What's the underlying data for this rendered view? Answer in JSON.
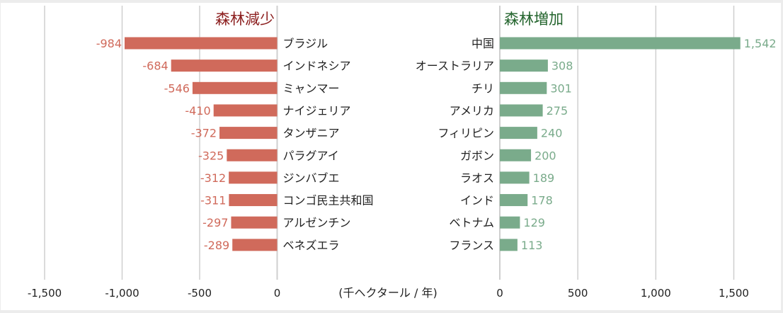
{
  "chart_data": [
    {
      "type": "bar",
      "orientation": "horizontal",
      "title": "森林減少",
      "title_color": "#8b1d1d",
      "bar_color": "#d06a5b",
      "categories": [
        "ブラジル",
        "インドネシア",
        "ミャンマー",
        "ナイジェリア",
        "タンザニア",
        "パラグアイ",
        "ジンバブエ",
        "コンゴ民主共和国",
        "アルゼンチン",
        "ベネズエラ"
      ],
      "values": [
        -984,
        -684,
        -546,
        -410,
        -372,
        -325,
        -312,
        -311,
        -297,
        -289
      ],
      "value_labels": [
        "-984",
        "-684",
        "-546",
        "-410",
        "-372",
        "-325",
        "-312",
        "-311",
        "-297",
        "-289"
      ],
      "xlim": [
        -1500,
        0
      ],
      "xticks": [
        -1500,
        -1000,
        -500,
        0
      ],
      "xtick_labels": [
        "-1,500",
        "-1,000",
        "-500",
        "0"
      ],
      "grid": true
    },
    {
      "type": "bar",
      "orientation": "horizontal",
      "title": "森林増加",
      "title_color": "#24652e",
      "bar_color": "#7aab8b",
      "categories": [
        "中国",
        "オーストラリア",
        "チリ",
        "アメリカ",
        "フィリピン",
        "ガボン",
        "ラオス",
        "インド",
        "ベトナム",
        "フランス"
      ],
      "values": [
        1542,
        308,
        301,
        275,
        240,
        200,
        189,
        178,
        129,
        113
      ],
      "value_labels": [
        "1,542",
        "308",
        "301",
        "275",
        "240",
        "200",
        "189",
        "178",
        "129",
        "113"
      ],
      "xlim": [
        0,
        1500
      ],
      "xticks": [
        0,
        500,
        1000,
        1500
      ],
      "xtick_labels": [
        "0",
        "500",
        "1,000",
        "1,500"
      ],
      "grid": true
    }
  ],
  "unit_label": "(千ヘクタール / 年)"
}
